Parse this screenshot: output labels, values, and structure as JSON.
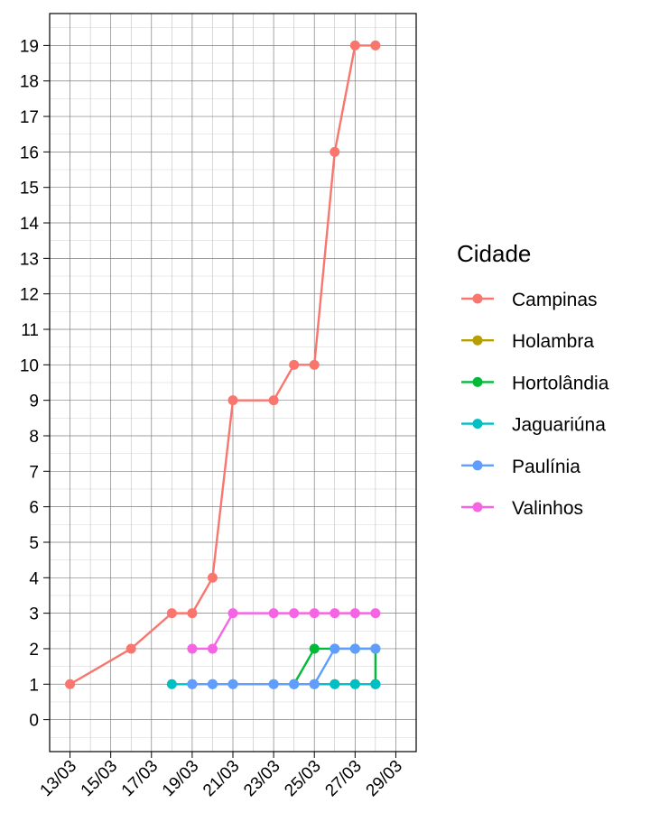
{
  "chart_data": {
    "type": "line",
    "title": "",
    "xlabel": "",
    "ylabel": "",
    "x_axis": {
      "type": "date",
      "range": [
        "12/03",
        "30/03"
      ],
      "ticks": [
        "13/03",
        "15/03",
        "17/03",
        "19/03",
        "21/03",
        "23/03",
        "25/03",
        "27/03",
        "29/03"
      ]
    },
    "y_axis": {
      "range": [
        -0.9,
        19.9
      ],
      "ticks": [
        0,
        1,
        2,
        3,
        4,
        5,
        6,
        7,
        8,
        9,
        10,
        11,
        12,
        13,
        14,
        15,
        16,
        17,
        18,
        19
      ]
    },
    "grid": true,
    "legend": {
      "title": "Cidade",
      "placement": "right"
    },
    "series": [
      {
        "name": "Campinas",
        "color": "#F8766D",
        "points": [
          [
            "13/03",
            1
          ],
          [
            "16/03",
            2
          ],
          [
            "18/03",
            3
          ],
          [
            "19/03",
            3
          ],
          [
            "20/03",
            4
          ],
          [
            "21/03",
            9
          ],
          [
            "23/03",
            9
          ],
          [
            "24/03",
            10
          ],
          [
            "25/03",
            10
          ],
          [
            "26/03",
            16
          ],
          [
            "27/03",
            19
          ],
          [
            "28/03",
            19
          ]
        ]
      },
      {
        "name": "Holambra",
        "color": "#B79F00",
        "points": [
          [
            "25/03",
            1
          ],
          [
            "26/03",
            1
          ],
          [
            "27/03",
            1
          ],
          [
            "28/03",
            1
          ]
        ]
      },
      {
        "name": "Hortolândia",
        "color": "#00BA38",
        "points": [
          [
            "24/03",
            1
          ],
          [
            "25/03",
            2
          ],
          [
            "26/03",
            2
          ],
          [
            "27/03",
            2
          ],
          [
            "28/03",
            2
          ],
          [
            "28/03",
            1
          ]
        ]
      },
      {
        "name": "Jaguariúna",
        "color": "#00BFC4",
        "points": [
          [
            "18/03",
            1
          ],
          [
            "19/03",
            1
          ],
          [
            "20/03",
            1
          ],
          [
            "21/03",
            1
          ],
          [
            "23/03",
            1
          ],
          [
            "24/03",
            1
          ],
          [
            "25/03",
            1
          ],
          [
            "26/03",
            1
          ],
          [
            "27/03",
            1
          ],
          [
            "28/03",
            1
          ]
        ]
      },
      {
        "name": "Paulínia",
        "color": "#619CFF",
        "points": [
          [
            "19/03",
            1
          ],
          [
            "20/03",
            1
          ],
          [
            "21/03",
            1
          ],
          [
            "23/03",
            1
          ],
          [
            "24/03",
            1
          ],
          [
            "25/03",
            1
          ],
          [
            "26/03",
            2
          ],
          [
            "27/03",
            2
          ],
          [
            "28/03",
            2
          ]
        ]
      },
      {
        "name": "Valinhos",
        "color": "#F564E3",
        "points": [
          [
            "19/03",
            2
          ],
          [
            "20/03",
            2
          ],
          [
            "21/03",
            3
          ],
          [
            "23/03",
            3
          ],
          [
            "24/03",
            3
          ],
          [
            "25/03",
            3
          ],
          [
            "26/03",
            3
          ],
          [
            "27/03",
            3
          ],
          [
            "28/03",
            3
          ]
        ]
      }
    ]
  }
}
